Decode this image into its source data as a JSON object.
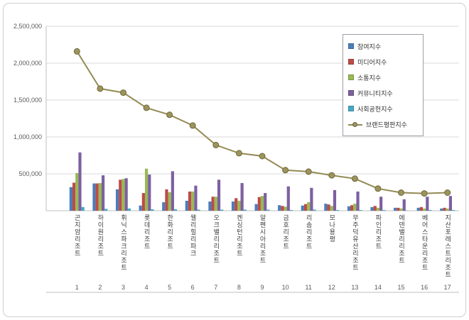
{
  "page": {
    "background": "#ffffff",
    "frame_border": "#cfcfcf"
  },
  "chart_data": {
    "type": "bar",
    "subtype": "grouped-bars-with-line-overlay",
    "title": "",
    "xlabel": "",
    "ylabel": "",
    "ylim": [
      0,
      2500000
    ],
    "grid": true,
    "legend_position": "upper-right",
    "categories": [
      "곤지암리조트",
      "하이원리조트",
      "휘닉스파크리조트",
      "롯데리조트",
      "한화리조트",
      "웰리힐리파크",
      "오크밸리리조트",
      "켄싱턴리조트",
      "알펜시아리조트",
      "금호리조트",
      "리솜리조트",
      "모나용평",
      "무주덕유산리조트",
      "파인리조트",
      "에덴밸리리조트",
      "베어스타운리조트",
      "지산포레스트리조트"
    ],
    "rank_labels": [
      "1",
      "2",
      "3",
      "4",
      "5",
      "6",
      "7",
      "8",
      "9",
      "10",
      "11",
      "12",
      "13",
      "14",
      "15",
      "16",
      "17"
    ],
    "yticks": [
      {
        "value": 500000,
        "label": "500,000"
      },
      {
        "value": 1000000,
        "label": "1,000,000"
      },
      {
        "value": 1500000,
        "label": "1,500,000"
      },
      {
        "value": 2000000,
        "label": "2,000,000"
      },
      {
        "value": 2500000,
        "label": "2,500,000"
      }
    ],
    "series": [
      {
        "name": "참여지수",
        "type": "bar",
        "color": "#4A7EBB",
        "values": [
          320000,
          370000,
          290000,
          70000,
          115000,
          135000,
          125000,
          125000,
          90000,
          75000,
          70000,
          95000,
          60000,
          50000,
          40000,
          40000,
          30000
        ]
      },
      {
        "name": "미디어지수",
        "type": "bar",
        "color": "#BE4B48",
        "values": [
          380000,
          370000,
          420000,
          240000,
          290000,
          260000,
          190000,
          170000,
          185000,
          65000,
          90000,
          85000,
          75000,
          65000,
          40000,
          50000,
          40000
        ]
      },
      {
        "name": "소통지수",
        "type": "bar",
        "color": "#98B954",
        "values": [
          510000,
          375000,
          430000,
          570000,
          250000,
          260000,
          190000,
          135000,
          200000,
          55000,
          115000,
          65000,
          95000,
          40000,
          30000,
          30000,
          30000
        ]
      },
      {
        "name": "커뮤니티지수",
        "type": "bar",
        "color": "#7D60A0",
        "values": [
          790000,
          480000,
          440000,
          490000,
          535000,
          340000,
          420000,
          375000,
          240000,
          330000,
          310000,
          280000,
          260000,
          190000,
          155000,
          190000,
          200000
        ]
      },
      {
        "name": "사회공헌지수",
        "type": "bar",
        "color": "#46AAC5",
        "values": [
          50000,
          25000,
          30000,
          20000,
          20000,
          15000,
          15000,
          15000,
          15000,
          10000,
          15000,
          10000,
          10000,
          10000,
          5000,
          10000,
          10000
        ]
      },
      {
        "name": "브랜드평판지수",
        "type": "line",
        "color": "#948A54",
        "marker_fill": "#9D945D",
        "marker_edge": "#6E6839",
        "values": [
          2160000,
          1655000,
          1600000,
          1395000,
          1300000,
          1155000,
          890000,
          780000,
          740000,
          550000,
          530000,
          480000,
          435000,
          300000,
          245000,
          235000,
          245000
        ]
      }
    ]
  }
}
